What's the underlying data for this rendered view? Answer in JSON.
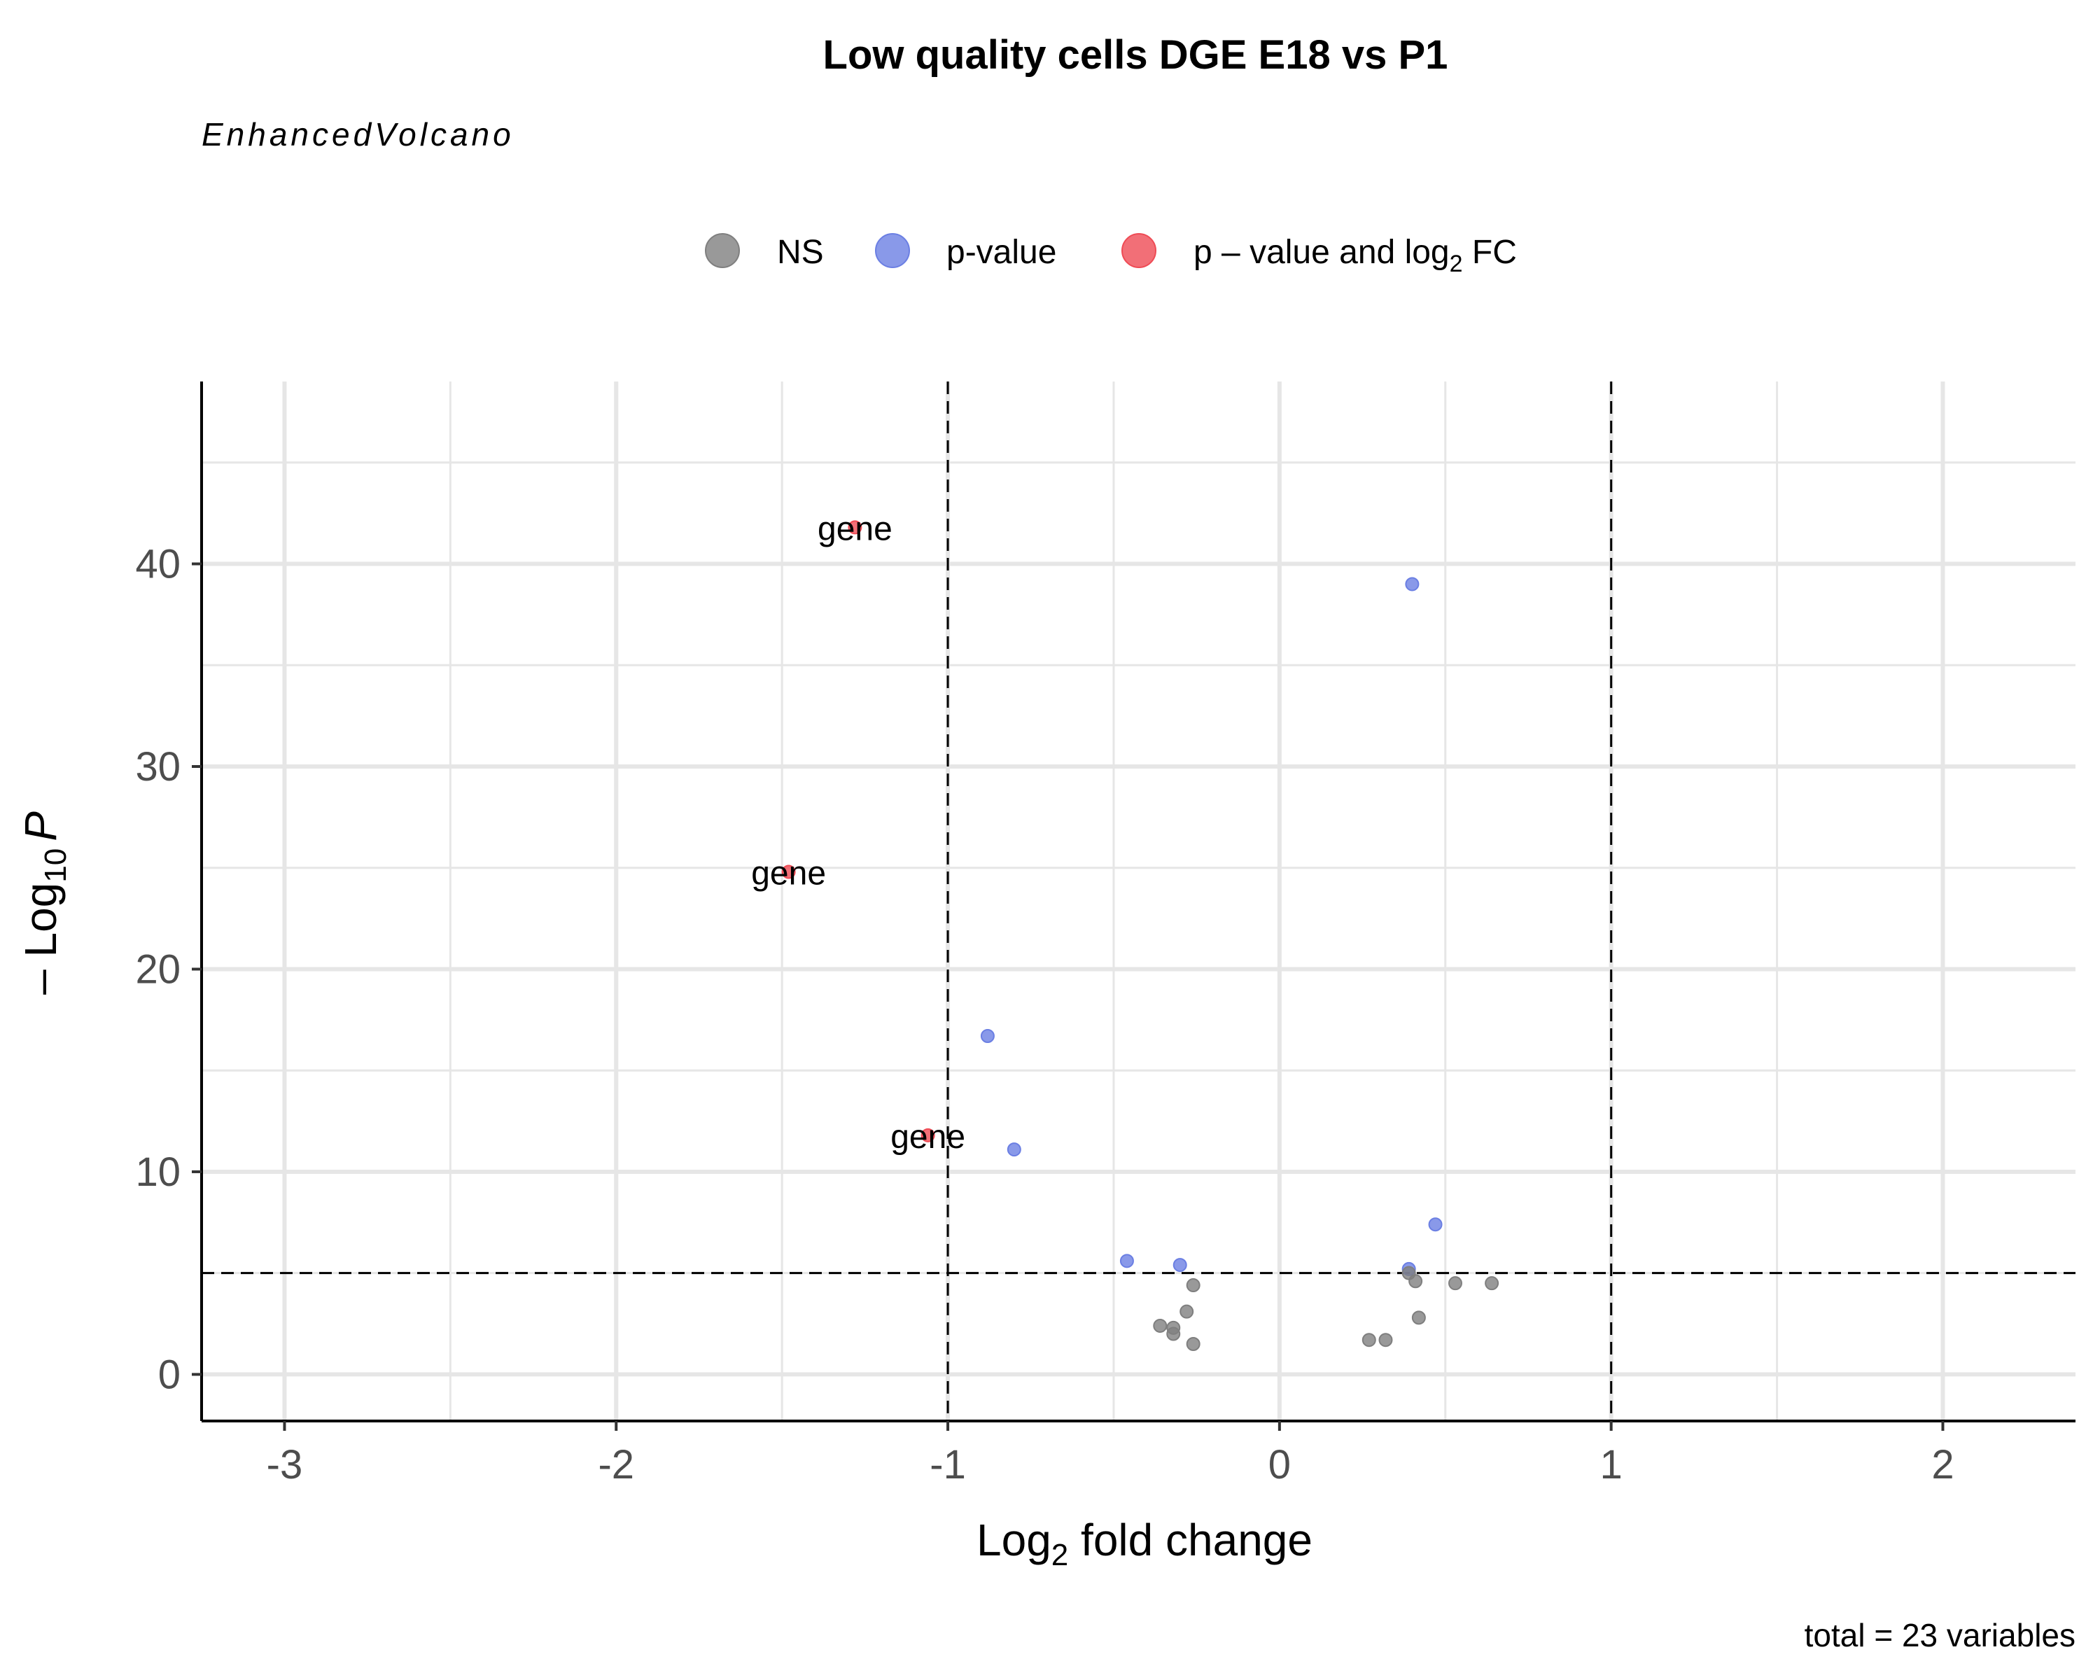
{
  "chart_data": {
    "type": "scatter",
    "title": "Low quality cells DGE E18 vs P1",
    "subtitle": "EnhancedVolcano",
    "caption": "total = 23 variables",
    "xlabel": {
      "base": "Log",
      "sub": "2",
      "rest": " fold change"
    },
    "ylabel": {
      "prefix": "– Log",
      "sub": "10",
      "italic": "P"
    },
    "xlim": [
      -3.25,
      2.4
    ],
    "ylim": [
      -2.3,
      49
    ],
    "x_ticks": [
      {
        "value": -3,
        "label": "-3"
      },
      {
        "value": -2,
        "label": "-2"
      },
      {
        "value": -1,
        "label": "-1"
      },
      {
        "value": 0,
        "label": "0"
      },
      {
        "value": 1,
        "label": "1"
      },
      {
        "value": 2,
        "label": "2"
      }
    ],
    "y_ticks": [
      {
        "value": 0,
        "label": "0"
      },
      {
        "value": 10,
        "label": "10"
      },
      {
        "value": 20,
        "label": "20"
      },
      {
        "value": 30,
        "label": "30"
      },
      {
        "value": 40,
        "label": "40"
      }
    ],
    "grid": true,
    "fc_cutoffs": [
      -1,
      1
    ],
    "p_cutoff_neglog10": 5,
    "legend_position": "top",
    "legend": [
      {
        "key": "NS",
        "label": "NS",
        "color": "#7f7f7f"
      },
      {
        "key": "p",
        "label": "p-value",
        "color": "#6b7fe3"
      },
      {
        "key": "pfc",
        "label": "p – value and log",
        "label_sub": "2",
        "label_rest": " FC",
        "color": "#ef4b55"
      }
    ],
    "points": [
      {
        "x": -1.28,
        "y": 41.8,
        "group": "pfc",
        "label": "gene"
      },
      {
        "x": -1.48,
        "y": 24.8,
        "group": "pfc",
        "label": "gene"
      },
      {
        "x": -1.06,
        "y": 11.8,
        "group": "pfc",
        "label": "gene"
      },
      {
        "x": 0.4,
        "y": 39.0,
        "group": "p"
      },
      {
        "x": -0.88,
        "y": 16.7,
        "group": "p"
      },
      {
        "x": -0.8,
        "y": 11.1,
        "group": "p"
      },
      {
        "x": 0.47,
        "y": 7.4,
        "group": "p"
      },
      {
        "x": -0.46,
        "y": 5.6,
        "group": "p"
      },
      {
        "x": -0.3,
        "y": 5.4,
        "group": "p"
      },
      {
        "x": 0.39,
        "y": 5.2,
        "group": "p"
      },
      {
        "x": 0.39,
        "y": 5.0,
        "group": "NS"
      },
      {
        "x": 0.41,
        "y": 4.6,
        "group": "NS"
      },
      {
        "x": 0.53,
        "y": 4.5,
        "group": "NS"
      },
      {
        "x": 0.64,
        "y": 4.5,
        "group": "NS"
      },
      {
        "x": -0.26,
        "y": 4.4,
        "group": "NS"
      },
      {
        "x": -0.28,
        "y": 3.1,
        "group": "NS"
      },
      {
        "x": 0.42,
        "y": 2.8,
        "group": "NS"
      },
      {
        "x": -0.36,
        "y": 2.4,
        "group": "NS"
      },
      {
        "x": -0.32,
        "y": 2.3,
        "group": "NS"
      },
      {
        "x": -0.32,
        "y": 2.0,
        "group": "NS"
      },
      {
        "x": 0.27,
        "y": 1.7,
        "group": "NS"
      },
      {
        "x": 0.32,
        "y": 1.7,
        "group": "NS"
      },
      {
        "x": -0.26,
        "y": 1.5,
        "group": "NS"
      }
    ]
  }
}
